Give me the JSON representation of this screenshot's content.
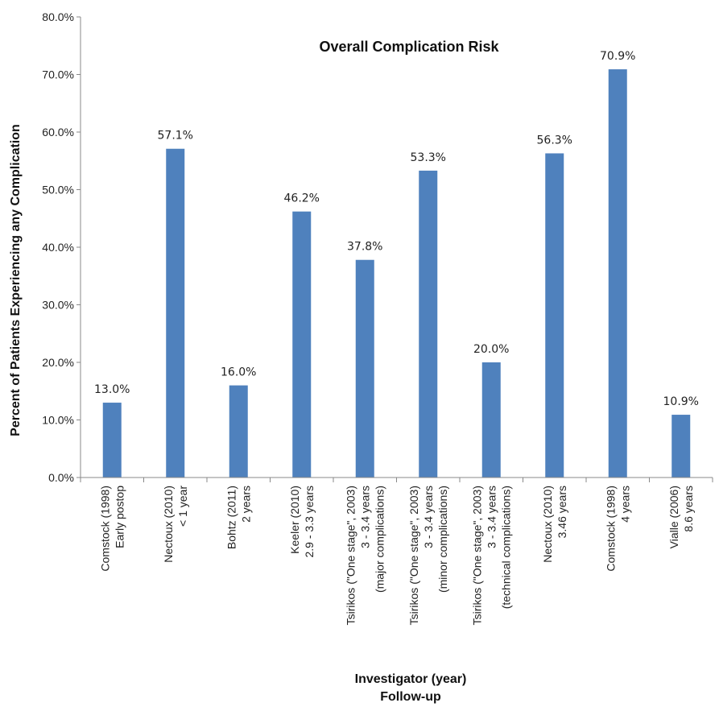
{
  "chart_data": {
    "type": "bar",
    "title": "Overall Complication Risk",
    "xlabel": [
      "Investigator (year)",
      "Follow-up"
    ],
    "ylabel": "Percent of Patients Experiencing any Complication",
    "ylim": [
      0,
      80
    ],
    "y_ticks": [
      "0.0%",
      "10.0%",
      "20.0%",
      "30.0%",
      "40.0%",
      "50.0%",
      "60.0%",
      "70.0%",
      "80.0%"
    ],
    "categories": [
      [
        "Comstock (1998)",
        "Early postop"
      ],
      [
        "Nectoux (2010)",
        "< 1 year"
      ],
      [
        "Bohtz (2011)",
        "2 years"
      ],
      [
        "Keeler (2010)",
        "2.9 - 3.3 years"
      ],
      [
        "Tsirikos (\"One stage\", 2003)",
        "3 - 3.4 years",
        "(major complications)"
      ],
      [
        "Tsirikos (\"One stage\", 2003)",
        "3 - 3.4 years",
        "(minor complications)"
      ],
      [
        "Tsirikos (\"One stage\", 2003)",
        "3 - 3.4 years",
        "(technical complications)"
      ],
      [
        "Nectoux (2010)",
        "3.46 years"
      ],
      [
        "Comstock (1998)",
        "4 years"
      ],
      [
        "Vialle (2006)",
        "8.6 years"
      ]
    ],
    "values": [
      13.0,
      57.1,
      16.0,
      46.2,
      37.8,
      53.3,
      20.0,
      56.3,
      70.9,
      10.9
    ],
    "data_labels": [
      "13.0%",
      "57.1%",
      "16.0%",
      "46.2%",
      "37.8%",
      "53.3%",
      "20.0%",
      "56.3%",
      "70.9%",
      "10.9%"
    ],
    "bar_color": "#4f81bd",
    "grid": false,
    "legend": "none"
  }
}
